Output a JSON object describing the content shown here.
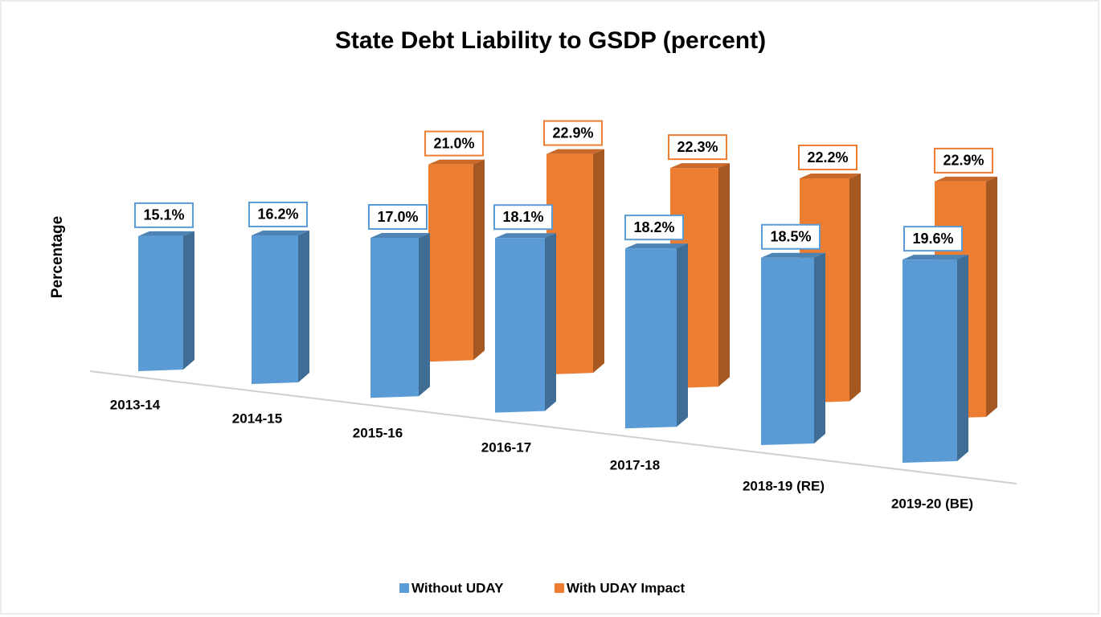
{
  "chart_data": {
    "type": "bar3d",
    "title": "State Debt Liability to GSDP (percent)",
    "y_label": "Percentage",
    "categories": [
      "2013-14",
      "2014-15",
      "2015-16",
      "2016-17",
      "2017-18",
      "2018-19 (RE)",
      "2019-20 (BE)"
    ],
    "series": [
      {
        "name": "Without UDAY",
        "color": "#5b9bd5",
        "values": [
          15.1,
          16.2,
          17.0,
          18.1,
          18.2,
          18.5,
          19.6
        ],
        "value_labels": [
          "15.1%",
          "16.2%",
          "17.0%",
          "18.1%",
          "18.2%",
          "18.5%",
          "19.6%"
        ]
      },
      {
        "name": "With UDAY Impact",
        "color": "#ed7d31",
        "values": [
          null,
          null,
          21.0,
          22.9,
          22.3,
          22.2,
          22.9
        ],
        "value_labels": [
          null,
          null,
          "21.0%",
          "22.9%",
          "22.3%",
          "22.2%",
          "22.9%"
        ]
      }
    ],
    "legend": "bottom"
  }
}
